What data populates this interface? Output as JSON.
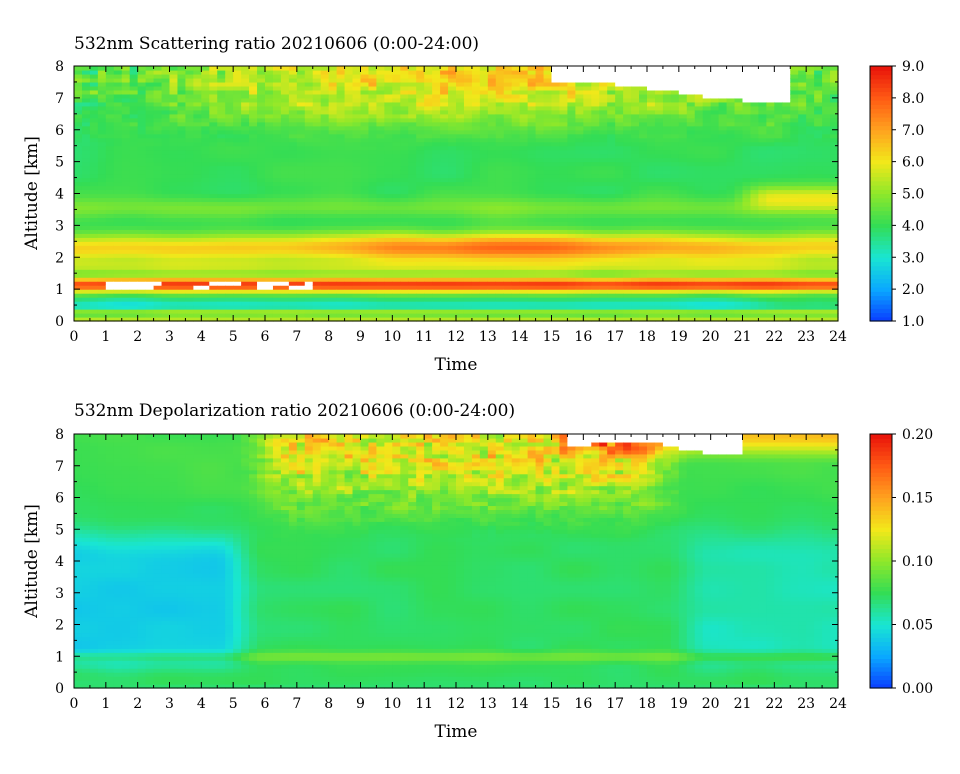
{
  "chart_data": [
    {
      "type": "heatmap",
      "title": "532nm Scattering ratio  20210606 (0:00-24:00)",
      "xlabel": "Time",
      "ylabel": "Altitude [km]",
      "xlim": [
        0,
        24
      ],
      "ylim": [
        0,
        8
      ],
      "x_ticks": [
        "0",
        "1",
        "2",
        "3",
        "4",
        "5",
        "6",
        "7",
        "8",
        "9",
        "10",
        "11",
        "12",
        "13",
        "14",
        "15",
        "16",
        "17",
        "18",
        "19",
        "20",
        "21",
        "22",
        "23",
        "24"
      ],
      "y_ticks": [
        "0",
        "1",
        "2",
        "3",
        "4",
        "5",
        "6",
        "7",
        "8"
      ],
      "colorbar": {
        "min": 1.0,
        "max": 9.0,
        "ticks": [
          "1.0",
          "2.0",
          "3.0",
          "4.0",
          "5.0",
          "6.0",
          "7.0",
          "8.0",
          "9.0"
        ]
      },
      "colormap": [
        "#0a3cff",
        "#0aa8ff",
        "#19e6d2",
        "#33dd55",
        "#8ee82a",
        "#f2e81a",
        "#ffa21f",
        "#ff5a14",
        "#e8120a"
      ],
      "missing_color": "#ffffff",
      "features": [
        {
          "altitude_km": [
            0.1,
            0.4
          ],
          "value": 2.5,
          "description": "near-surface layer"
        },
        {
          "altitude_km": [
            0.9,
            1.4
          ],
          "value": 8.5,
          "description": "strong aerosol layer, saturated near 1.1 km before 9:00"
        },
        {
          "altitude_km": [
            1.6,
            2.6
          ],
          "value": 5.5,
          "description": "elevated layer with maximum around 11-16 h"
        },
        {
          "altitude_km": [
            3.3,
            3.8
          ],
          "value": 4.6,
          "description": "moderate layer"
        },
        {
          "altitude_km": [
            3.6,
            4.3
          ],
          "time_h": [
            21,
            24
          ],
          "value": 6.0,
          "description": "late-day layer"
        },
        {
          "altitude_km": [
            6.5,
            8.0
          ],
          "value": 7.5,
          "description": "noisy upper region"
        }
      ]
    },
    {
      "type": "heatmap",
      "title": "532nm Depolarization ratio  20210606 (0:00-24:00)",
      "xlabel": "Time",
      "ylabel": "Altitude [km]",
      "xlim": [
        0,
        24
      ],
      "ylim": [
        0,
        8
      ],
      "x_ticks": [
        "0",
        "1",
        "2",
        "3",
        "4",
        "5",
        "6",
        "7",
        "8",
        "9",
        "10",
        "11",
        "12",
        "13",
        "14",
        "15",
        "16",
        "17",
        "18",
        "19",
        "20",
        "21",
        "22",
        "23",
        "24"
      ],
      "y_ticks": [
        "0",
        "1",
        "2",
        "3",
        "4",
        "5",
        "6",
        "7",
        "8"
      ],
      "colorbar": {
        "min": 0.0,
        "max": 0.2,
        "ticks": [
          "0.00",
          "0.05",
          "0.10",
          "0.15",
          "0.20"
        ]
      },
      "colormap": [
        "#0a3cff",
        "#0aa8ff",
        "#19e6d2",
        "#33dd55",
        "#8ee82a",
        "#f2e81a",
        "#ffa21f",
        "#ff5a14",
        "#e8120a"
      ],
      "missing_color": "#ffffff",
      "features": [
        {
          "altitude_km": [
            0,
            5
          ],
          "time_h": [
            0,
            5
          ],
          "value": 0.045,
          "description": "low depolarization early morning"
        },
        {
          "altitude_km": [
            0.9,
            1.1
          ],
          "value": 0.09,
          "description": "thin layer near 1 km"
        },
        {
          "altitude_km": [
            5,
            8
          ],
          "time_h": [
            5,
            19
          ],
          "value": 0.12,
          "description": "noisy high depolarization aloft"
        },
        {
          "altitude_km": [
            7.2,
            8.0
          ],
          "time_h": [
            15,
            24
          ],
          "value": 0.18,
          "description": "high region near top"
        }
      ]
    }
  ]
}
